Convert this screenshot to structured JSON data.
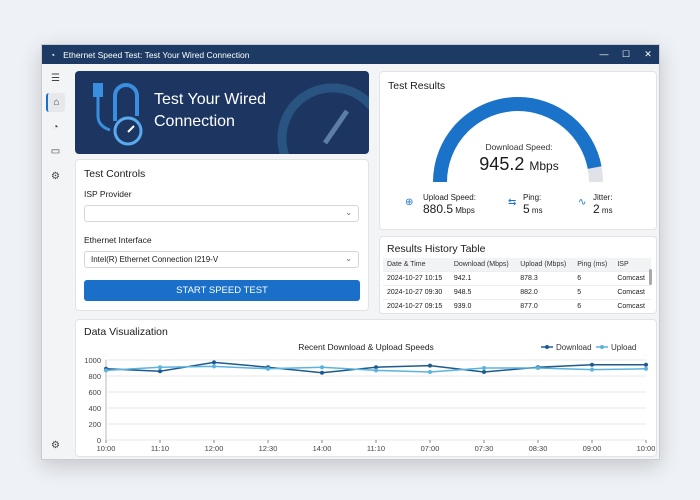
{
  "window": {
    "title": "Ethernet Speed Test: Test Your Wired Connection",
    "controls": [
      "—",
      "☐",
      "✕"
    ]
  },
  "sidebar": {
    "items": [
      {
        "icon": "menu-icon",
        "glyph": "☰"
      },
      {
        "icon": "home-icon",
        "glyph": "⌂"
      },
      {
        "icon": "speedometer-icon",
        "glyph": "◔"
      },
      {
        "icon": "device-icon",
        "glyph": "▭"
      },
      {
        "icon": "settings-icon",
        "glyph": "⚙"
      }
    ],
    "footer_glyph": "⚙"
  },
  "banner": {
    "line1": "Test Your Wired",
    "line2": "Connection"
  },
  "controls": {
    "title": "Test Controls",
    "isp_label": "ISP Provider",
    "isp_value": "",
    "iface_label": "Ethernet Interface",
    "iface_value": "Intel(R) Ethernet Connection I219-V",
    "start": "START SPEED TEST"
  },
  "results": {
    "title": "Test Results",
    "download_label": "Download Speed:",
    "download_value": "945.2",
    "download_unit": "Mbps",
    "download_fraction": 0.94,
    "upload_label": "Upload Speed:",
    "upload_value": "880.5",
    "upload_unit": "Mbps",
    "ping_label": "Ping:",
    "ping_value": "5",
    "ping_unit": "ms",
    "jitter_label": "Jitter:",
    "jitter_value": "2",
    "jitter_unit": "ms",
    "accent": "#1a73c8"
  },
  "history": {
    "title": "Results History Table",
    "columns": [
      "Date & Time",
      "Download (Mbps)",
      "Upload (Mbps)",
      "Ping (ms)",
      "ISP"
    ],
    "rows": [
      [
        "2024-10-27 10:15",
        "942.1",
        "878.3",
        "6",
        "Comcast"
      ],
      [
        "2024-10-27 09:30",
        "948.5",
        "882.0",
        "5",
        "Comcast"
      ],
      [
        "2024-10-27 09:15",
        "939.0",
        "877.0",
        "6",
        "Comcast"
      ]
    ]
  },
  "viz": {
    "title": "Data Visualization"
  },
  "chart_data": {
    "type": "line",
    "title": "Recent Download & Upload Speeds",
    "categories": [
      "10:00",
      "11:10",
      "12:00",
      "12:30",
      "14:00",
      "11:10",
      "07:00",
      "07:30",
      "08:30",
      "09:00",
      "10:00"
    ],
    "series": [
      {
        "name": "Download",
        "color": "#1d5a8e",
        "values": [
          890,
          860,
          970,
          910,
          840,
          910,
          930,
          850,
          910,
          940,
          940
        ]
      },
      {
        "name": "Upload",
        "color": "#5bb3de",
        "values": [
          870,
          910,
          920,
          890,
          910,
          870,
          850,
          900,
          900,
          880,
          890
        ]
      }
    ],
    "yticks": [
      0,
      200,
      400,
      600,
      800,
      1000
    ],
    "ylim": [
      0,
      1000
    ],
    "grid": true,
    "legend": "top-right"
  }
}
